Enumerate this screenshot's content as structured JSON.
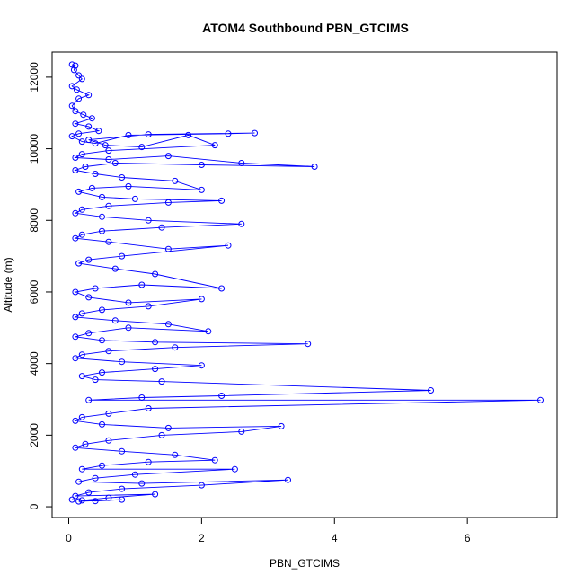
{
  "chart_data": {
    "type": "line",
    "title": "ATOM4 Southbound PBN_GTCIMS",
    "xlabel": "PBN_GTCIMS",
    "ylabel": "Altitude (m)",
    "xlim": [
      -0.25,
      7.35
    ],
    "ylim": [
      -300,
      12700
    ],
    "xticks": [
      0,
      2,
      4,
      6
    ],
    "yticks": [
      0,
      2000,
      4000,
      6000,
      8000,
      10000,
      12000
    ],
    "xtick_labels": [
      "0",
      "2",
      "4",
      "6"
    ],
    "ytick_labels": [
      "0",
      "2000",
      "4000",
      "6000",
      "8000",
      "10000",
      "12000"
    ],
    "grid": false,
    "legend": "none",
    "color": "#0000ff",
    "marker": "open-circle",
    "series": [
      {
        "values": [
          [
            0.05,
            12350
          ],
          [
            0.1,
            12320
          ],
          [
            0.08,
            12200
          ],
          [
            0.15,
            12050
          ],
          [
            0.2,
            11950
          ],
          [
            0.05,
            11750
          ],
          [
            0.12,
            11650
          ],
          [
            0.3,
            11500
          ],
          [
            0.15,
            11400
          ],
          [
            0.05,
            11200
          ],
          [
            0.1,
            11050
          ],
          [
            0.22,
            10950
          ],
          [
            0.35,
            10850
          ],
          [
            0.1,
            10700
          ],
          [
            0.3,
            10620
          ],
          [
            0.45,
            10500
          ],
          [
            0.15,
            10420
          ],
          [
            0.05,
            10350
          ],
          [
            0.2,
            10200
          ],
          [
            0.4,
            10150
          ],
          [
            0.9,
            10380
          ],
          [
            2.4,
            10420
          ],
          [
            2.8,
            10440
          ],
          [
            1.2,
            10400
          ],
          [
            0.3,
            10250
          ],
          [
            0.55,
            10100
          ],
          [
            1.1,
            10050
          ],
          [
            1.8,
            10380
          ],
          [
            2.2,
            10100
          ],
          [
            0.6,
            9950
          ],
          [
            0.2,
            9850
          ],
          [
            0.1,
            9750
          ],
          [
            0.6,
            9700
          ],
          [
            1.5,
            9800
          ],
          [
            2.6,
            9600
          ],
          [
            3.7,
            9500
          ],
          [
            2.0,
            9550
          ],
          [
            0.7,
            9600
          ],
          [
            0.25,
            9500
          ],
          [
            0.1,
            9400
          ],
          [
            0.4,
            9300
          ],
          [
            0.8,
            9200
          ],
          [
            1.6,
            9100
          ],
          [
            2.0,
            8850
          ],
          [
            0.9,
            8950
          ],
          [
            0.35,
            8900
          ],
          [
            0.15,
            8800
          ],
          [
            0.5,
            8650
          ],
          [
            1.0,
            8600
          ],
          [
            2.3,
            8550
          ],
          [
            1.5,
            8500
          ],
          [
            0.6,
            8400
          ],
          [
            0.2,
            8300
          ],
          [
            0.1,
            8200
          ],
          [
            0.5,
            8100
          ],
          [
            1.2,
            8000
          ],
          [
            2.6,
            7900
          ],
          [
            1.4,
            7800
          ],
          [
            0.5,
            7700
          ],
          [
            0.2,
            7600
          ],
          [
            0.1,
            7500
          ],
          [
            0.6,
            7400
          ],
          [
            1.5,
            7200
          ],
          [
            2.4,
            7300
          ],
          [
            0.8,
            7000
          ],
          [
            0.3,
            6900
          ],
          [
            0.15,
            6800
          ],
          [
            0.7,
            6650
          ],
          [
            1.3,
            6500
          ],
          [
            2.3,
            6100
          ],
          [
            1.1,
            6200
          ],
          [
            0.4,
            6100
          ],
          [
            0.1,
            6000
          ],
          [
            0.3,
            5850
          ],
          [
            0.9,
            5700
          ],
          [
            2.0,
            5800
          ],
          [
            1.2,
            5600
          ],
          [
            0.5,
            5500
          ],
          [
            0.2,
            5400
          ],
          [
            0.1,
            5300
          ],
          [
            0.7,
            5200
          ],
          [
            1.5,
            5100
          ],
          [
            2.1,
            4900
          ],
          [
            0.9,
            5000
          ],
          [
            0.3,
            4850
          ],
          [
            0.1,
            4750
          ],
          [
            0.5,
            4650
          ],
          [
            1.3,
            4600
          ],
          [
            3.6,
            4550
          ],
          [
            1.6,
            4450
          ],
          [
            0.6,
            4350
          ],
          [
            0.2,
            4250
          ],
          [
            0.1,
            4150
          ],
          [
            0.8,
            4050
          ],
          [
            2.0,
            3950
          ],
          [
            1.3,
            3850
          ],
          [
            0.5,
            3750
          ],
          [
            0.2,
            3650
          ],
          [
            0.4,
            3550
          ],
          [
            1.4,
            3500
          ],
          [
            5.45,
            3250
          ],
          [
            2.3,
            3100
          ],
          [
            1.1,
            3050
          ],
          [
            0.3,
            2980
          ],
          [
            7.1,
            2980
          ],
          [
            1.2,
            2750
          ],
          [
            0.6,
            2600
          ],
          [
            0.2,
            2500
          ],
          [
            0.1,
            2400
          ],
          [
            0.5,
            2300
          ],
          [
            1.5,
            2200
          ],
          [
            3.2,
            2250
          ],
          [
            2.6,
            2100
          ],
          [
            1.4,
            2000
          ],
          [
            0.6,
            1850
          ],
          [
            0.25,
            1750
          ],
          [
            0.1,
            1650
          ],
          [
            0.8,
            1550
          ],
          [
            1.6,
            1450
          ],
          [
            2.2,
            1300
          ],
          [
            1.2,
            1250
          ],
          [
            0.5,
            1150
          ],
          [
            0.2,
            1050
          ],
          [
            2.5,
            1050
          ],
          [
            1.0,
            900
          ],
          [
            0.4,
            800
          ],
          [
            0.15,
            700
          ],
          [
            1.1,
            650
          ],
          [
            3.3,
            750
          ],
          [
            2.0,
            600
          ],
          [
            0.8,
            500
          ],
          [
            0.3,
            400
          ],
          [
            0.1,
            300
          ],
          [
            1.3,
            350
          ],
          [
            0.6,
            250
          ],
          [
            0.2,
            180
          ],
          [
            0.05,
            200
          ],
          [
            0.4,
            160
          ],
          [
            0.8,
            200
          ],
          [
            0.15,
            150
          ]
        ]
      }
    ]
  }
}
